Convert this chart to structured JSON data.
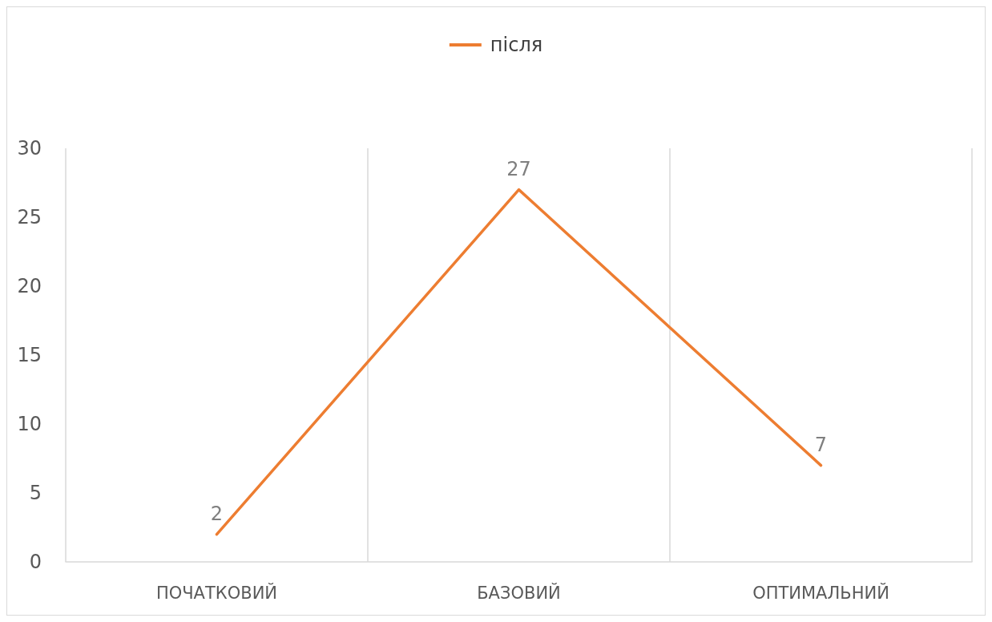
{
  "chart_data": {
    "type": "line",
    "categories": [
      "ПОЧАТКОВИЙ",
      "БАЗОВИЙ",
      "ОПТИМАЛЬНИЙ"
    ],
    "series": [
      {
        "name": "після",
        "color": "#ed7d31",
        "values": [
          2,
          27,
          7
        ]
      }
    ],
    "ylim": [
      0,
      30
    ],
    "yticks": [
      0,
      5,
      10,
      15,
      20,
      25,
      30
    ],
    "grid": "x",
    "legend": "top",
    "marker": "none",
    "line_style": "solid",
    "data_labels": true
  }
}
